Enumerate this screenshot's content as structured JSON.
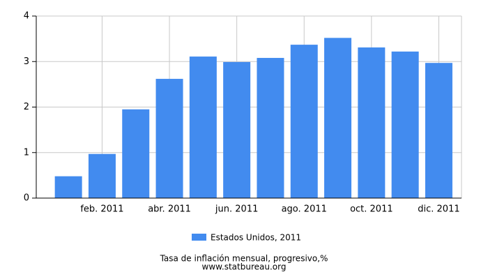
{
  "chart_data": {
    "type": "bar",
    "categories": [
      null,
      "feb. 2011",
      null,
      "abr. 2011",
      null,
      "jun. 2011",
      null,
      "ago. 2011",
      null,
      "oct. 2011",
      null,
      "dic. 2011"
    ],
    "series": [
      {
        "name": "Estados Unidos, 2011",
        "color": "#428bef",
        "values": [
          0.48,
          0.97,
          1.95,
          2.62,
          3.11,
          2.99,
          3.08,
          3.37,
          3.52,
          3.31,
          3.22,
          2.97
        ]
      }
    ],
    "ylim": [
      0,
      4
    ],
    "yticks": [
      0,
      1,
      2,
      3,
      4
    ],
    "grid": true,
    "title": "Tasa de inflación mensual, progresivo,%",
    "source": "www.statbureau.org"
  }
}
